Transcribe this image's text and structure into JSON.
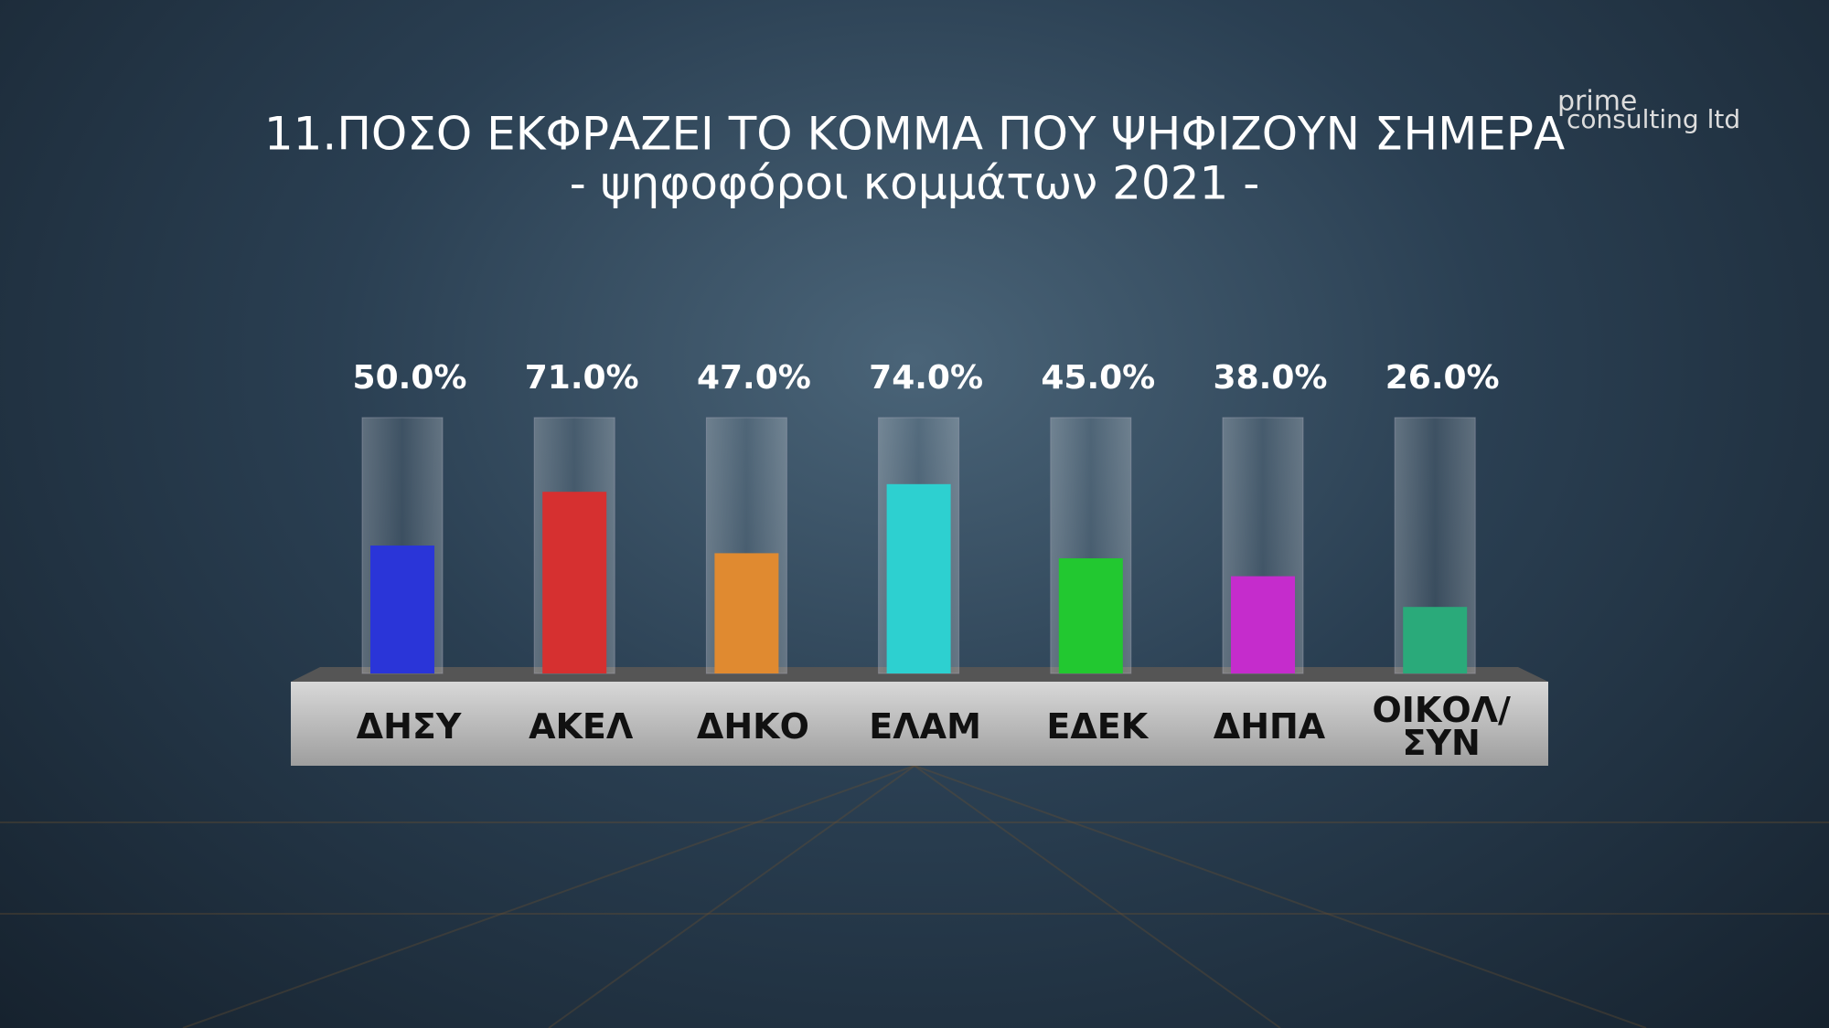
{
  "chart_data": {
    "type": "bar",
    "title": "11.ΠΟΣΟ ΕΚΦΡΑΖΕΙ ΤΟ ΚΟΜΜΑ ΠΟΥ ΨΗΦΙΖΟΥΝ ΣΗΜΕΡΑ",
    "subtitle": "- ψηφοφόροι κομμάτων 2021 -",
    "logo": [
      "prime",
      "consulting ltd"
    ],
    "categories": [
      "ΔΗΣΥ",
      "ΑΚΕΛ",
      "ΔΗΚΟ",
      "ΕΛΑΜ",
      "ΕΔΕΚ",
      "ΔΗΠΑ",
      "ΟΙΚΟΛ/ ΣΥΝ"
    ],
    "values": [
      50,
      71,
      47,
      74,
      45,
      38,
      26
    ],
    "value_labels": [
      "50.0%",
      "71.0%",
      "47.0%",
      "74.0%",
      "45.0%",
      "38.0%",
      "26.0%"
    ],
    "colors": [
      "#2a35d8",
      "#d63030",
      "#e08a30",
      "#2dd0d0",
      "#22c830",
      "#c52ccc",
      "#2aaa7a"
    ],
    "ylim": [
      0,
      100
    ]
  }
}
